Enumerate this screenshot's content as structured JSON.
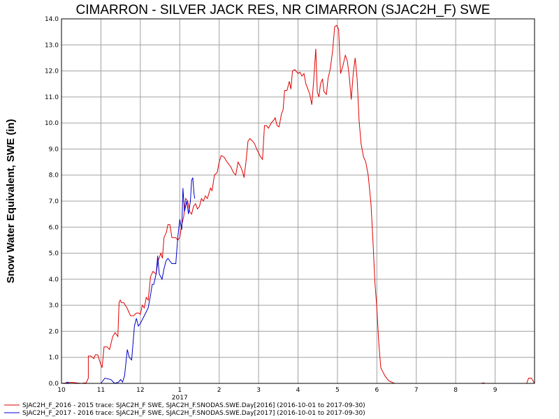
{
  "chart_data": {
    "type": "line",
    "title": "CIMARRON - SILVER JACK RES, NR CIMARRON (SJAC2H_F) SWE",
    "ylabel": "Snow Water Equivalent, SWE (in)",
    "xlabel": "",
    "ylim": [
      0,
      14
    ],
    "y_ticks": [
      "0.0",
      "1.0",
      "2.0",
      "3.0",
      "4.0",
      "5.0",
      "6.0",
      "7.0",
      "8.0",
      "9.0",
      "10.0",
      "11.0",
      "12.0",
      "13.0",
      "14.0"
    ],
    "x_ticks": [
      {
        "label": "10",
        "month": 0
      },
      {
        "label": "11",
        "month": 1
      },
      {
        "label": "12",
        "month": 2
      },
      {
        "label": "1",
        "month": 3
      },
      {
        "label": "2",
        "month": 4
      },
      {
        "label": "3",
        "month": 5
      },
      {
        "label": "4",
        "month": 6
      },
      {
        "label": "5",
        "month": 7
      },
      {
        "label": "6",
        "month": 8
      },
      {
        "label": "7",
        "month": 9
      },
      {
        "label": "8",
        "month": 10
      },
      {
        "label": "9",
        "month": 11
      }
    ],
    "year_label": "2017",
    "grid": true,
    "legend_position": "bottom",
    "series": [
      {
        "name": "SJAC2H_F_2016 - 2015 trace: SJAC2H_F SWE, SJAC2H_F.SNODAS.SWE.Day[2016] (2016-10-01 to 2017-09-30)",
        "color": "#e00000",
        "points": [
          [
            0.0,
            0
          ],
          [
            0.25,
            0.04
          ],
          [
            0.5,
            0
          ],
          [
            0.6,
            0.02
          ],
          [
            0.65,
            0
          ],
          [
            0.62,
            0
          ],
          [
            0.68,
            0.2
          ],
          [
            0.68,
            1.05
          ],
          [
            0.74,
            1.05
          ],
          [
            0.79,
            1.0
          ],
          [
            0.82,
            0.95
          ],
          [
            0.86,
            1.1
          ],
          [
            0.92,
            1.1
          ],
          [
            0.98,
            0.8
          ],
          [
            1.03,
            0.6
          ],
          [
            1.08,
            1.4
          ],
          [
            1.16,
            1.4
          ],
          [
            1.22,
            1.3
          ],
          [
            1.3,
            1.8
          ],
          [
            1.36,
            1.95
          ],
          [
            1.43,
            1.8
          ],
          [
            1.46,
            3.1
          ],
          [
            1.49,
            3.2
          ],
          [
            1.52,
            3.1
          ],
          [
            1.58,
            3.1
          ],
          [
            1.66,
            2.9
          ],
          [
            1.75,
            2.6
          ],
          [
            1.83,
            2.6
          ],
          [
            1.9,
            2.7
          ],
          [
            1.96,
            2.7
          ],
          [
            2.0,
            2.65
          ],
          [
            2.05,
            3.0
          ],
          [
            2.1,
            2.9
          ],
          [
            2.15,
            3.3
          ],
          [
            2.2,
            3.2
          ],
          [
            2.26,
            4.1
          ],
          [
            2.32,
            4.3
          ],
          [
            2.4,
            4.2
          ],
          [
            2.45,
            4.7
          ],
          [
            2.52,
            5.0
          ],
          [
            2.56,
            4.8
          ],
          [
            2.6,
            5.6
          ],
          [
            2.66,
            5.8
          ],
          [
            2.7,
            6.1
          ],
          [
            2.75,
            6.1
          ],
          [
            2.8,
            5.6
          ],
          [
            2.9,
            5.6
          ],
          [
            2.95,
            5.5
          ],
          [
            3.0,
            5.6
          ],
          [
            3.05,
            6.1
          ],
          [
            3.1,
            6.4
          ],
          [
            3.15,
            7.1
          ],
          [
            3.2,
            7.0
          ],
          [
            3.25,
            6.6
          ],
          [
            3.3,
            6.5
          ],
          [
            3.35,
            6.8
          ],
          [
            3.4,
            6.9
          ],
          [
            3.45,
            6.7
          ],
          [
            3.5,
            6.8
          ],
          [
            3.55,
            7.1
          ],
          [
            3.6,
            7.0
          ],
          [
            3.65,
            7.2
          ],
          [
            3.7,
            7.1
          ],
          [
            3.78,
            7.5
          ],
          [
            3.82,
            7.4
          ],
          [
            3.88,
            8.0
          ],
          [
            3.95,
            8.1
          ],
          [
            4.0,
            8.5
          ],
          [
            4.05,
            8.75
          ],
          [
            4.12,
            8.7
          ],
          [
            4.2,
            8.5
          ],
          [
            4.3,
            8.3
          ],
          [
            4.36,
            8.1
          ],
          [
            4.42,
            8.0
          ],
          [
            4.48,
            8.5
          ],
          [
            4.55,
            8.3
          ],
          [
            4.6,
            8.1
          ],
          [
            4.63,
            7.9
          ],
          [
            4.68,
            8.5
          ],
          [
            4.73,
            9.3
          ],
          [
            4.78,
            9.4
          ],
          [
            4.85,
            9.3
          ],
          [
            4.9,
            9.2
          ],
          [
            4.95,
            9.0
          ],
          [
            5.05,
            8.7
          ],
          [
            5.1,
            8.6
          ],
          [
            5.15,
            9.9
          ],
          [
            5.2,
            9.9
          ],
          [
            5.25,
            9.8
          ],
          [
            5.32,
            10.0
          ],
          [
            5.38,
            10.1
          ],
          [
            5.42,
            10.2
          ],
          [
            5.47,
            9.9
          ],
          [
            5.52,
            9.85
          ],
          [
            5.58,
            10.35
          ],
          [
            5.62,
            10.5
          ],
          [
            5.66,
            11.25
          ],
          [
            5.72,
            11.25
          ],
          [
            5.78,
            11.6
          ],
          [
            5.82,
            11.3
          ],
          [
            5.86,
            12.0
          ],
          [
            5.92,
            12.05
          ],
          [
            6.0,
            11.9
          ],
          [
            6.05,
            11.95
          ],
          [
            6.1,
            11.8
          ],
          [
            6.15,
            11.9
          ],
          [
            6.2,
            11.5
          ],
          [
            6.25,
            11.3
          ],
          [
            6.3,
            11.1
          ],
          [
            6.35,
            10.7
          ],
          [
            6.4,
            11.7
          ],
          [
            6.45,
            12.85
          ],
          [
            6.49,
            11.2
          ],
          [
            6.53,
            11.0
          ],
          [
            6.57,
            11.5
          ],
          [
            6.62,
            11.7
          ],
          [
            6.66,
            11.2
          ],
          [
            6.72,
            11.1
          ],
          [
            6.76,
            11.7
          ],
          [
            6.82,
            12.1
          ],
          [
            6.88,
            12.8
          ],
          [
            6.93,
            13.7
          ],
          [
            6.98,
            13.75
          ],
          [
            7.03,
            13.6
          ],
          [
            7.08,
            11.9
          ],
          [
            7.14,
            12.2
          ],
          [
            7.2,
            12.6
          ],
          [
            7.25,
            12.4
          ],
          [
            7.3,
            11.8
          ],
          [
            7.35,
            10.9
          ],
          [
            7.4,
            11.9
          ],
          [
            7.45,
            12.5
          ],
          [
            7.5,
            11.7
          ],
          [
            7.55,
            10.1
          ],
          [
            7.6,
            9.2
          ],
          [
            7.66,
            8.7
          ],
          [
            7.72,
            8.5
          ],
          [
            7.78,
            8.0
          ],
          [
            7.85,
            6.9
          ],
          [
            7.9,
            5.5
          ],
          [
            7.95,
            3.9
          ],
          [
            8.0,
            2.9
          ],
          [
            8.05,
            1.5
          ],
          [
            8.1,
            0.6
          ],
          [
            8.15,
            0.45
          ],
          [
            8.2,
            0.3
          ],
          [
            8.3,
            0.1
          ],
          [
            8.45,
            0
          ],
          [
            10.65,
            0
          ],
          [
            10.7,
            0.02
          ],
          [
            10.75,
            0
          ],
          [
            11.8,
            0
          ],
          [
            11.85,
            0.2
          ],
          [
            11.92,
            0.2
          ],
          [
            12.0,
            0
          ]
        ]
      },
      {
        "name": "SJAC2H_F_2017 - 2016 trace: SJAC2H_F SWE, SJAC2H_F.SNODAS.SWE.Day[2017] (2016-10-01 to 2017-09-30)",
        "color": "#0000cc",
        "points": [
          [
            0.1,
            0
          ],
          [
            0.15,
            0.05
          ],
          [
            0.2,
            0
          ],
          [
            1.0,
            0
          ],
          [
            1.1,
            0.2
          ],
          [
            1.25,
            0.15
          ],
          [
            1.35,
            0
          ],
          [
            1.45,
            0.05
          ],
          [
            1.5,
            0.15
          ],
          [
            1.55,
            0.05
          ],
          [
            1.6,
            0.3
          ],
          [
            1.67,
            1.3
          ],
          [
            1.72,
            1.0
          ],
          [
            1.78,
            0.9
          ],
          [
            1.85,
            2.2
          ],
          [
            1.9,
            2.5
          ],
          [
            1.95,
            2.2
          ],
          [
            2.0,
            2.3
          ],
          [
            2.1,
            2.6
          ],
          [
            2.2,
            2.9
          ],
          [
            2.26,
            3.4
          ],
          [
            2.3,
            3.8
          ],
          [
            2.34,
            3.8
          ],
          [
            2.4,
            4.2
          ],
          [
            2.44,
            4.9
          ],
          [
            2.48,
            4.2
          ],
          [
            2.55,
            4.0
          ],
          [
            2.6,
            4.4
          ],
          [
            2.65,
            4.7
          ],
          [
            2.7,
            4.8
          ],
          [
            2.8,
            4.6
          ],
          [
            2.9,
            4.6
          ],
          [
            2.95,
            5.6
          ],
          [
            3.0,
            6.3
          ],
          [
            3.05,
            5.9
          ],
          [
            3.08,
            7.5
          ],
          [
            3.12,
            6.6
          ],
          [
            3.18,
            7.0
          ],
          [
            3.22,
            6.5
          ],
          [
            3.27,
            7.0
          ],
          [
            3.3,
            7.8
          ],
          [
            3.33,
            7.9
          ],
          [
            3.36,
            7.3
          ],
          [
            3.38,
            7.1
          ]
        ]
      }
    ]
  },
  "legend": [
    {
      "label": "SJAC2H_F_2016 - 2015 trace: SJAC2H_F SWE, SJAC2H_F.SNODAS.SWE.Day[2016] (2016-10-01 to 2017-09-30)",
      "color": "#e00000"
    },
    {
      "label": "SJAC2H_F_2017 - 2016 trace: SJAC2H_F SWE, SJAC2H_F.SNODAS.SWE.Day[2017] (2016-10-01 to 2017-09-30)",
      "color": "#0000cc"
    }
  ]
}
